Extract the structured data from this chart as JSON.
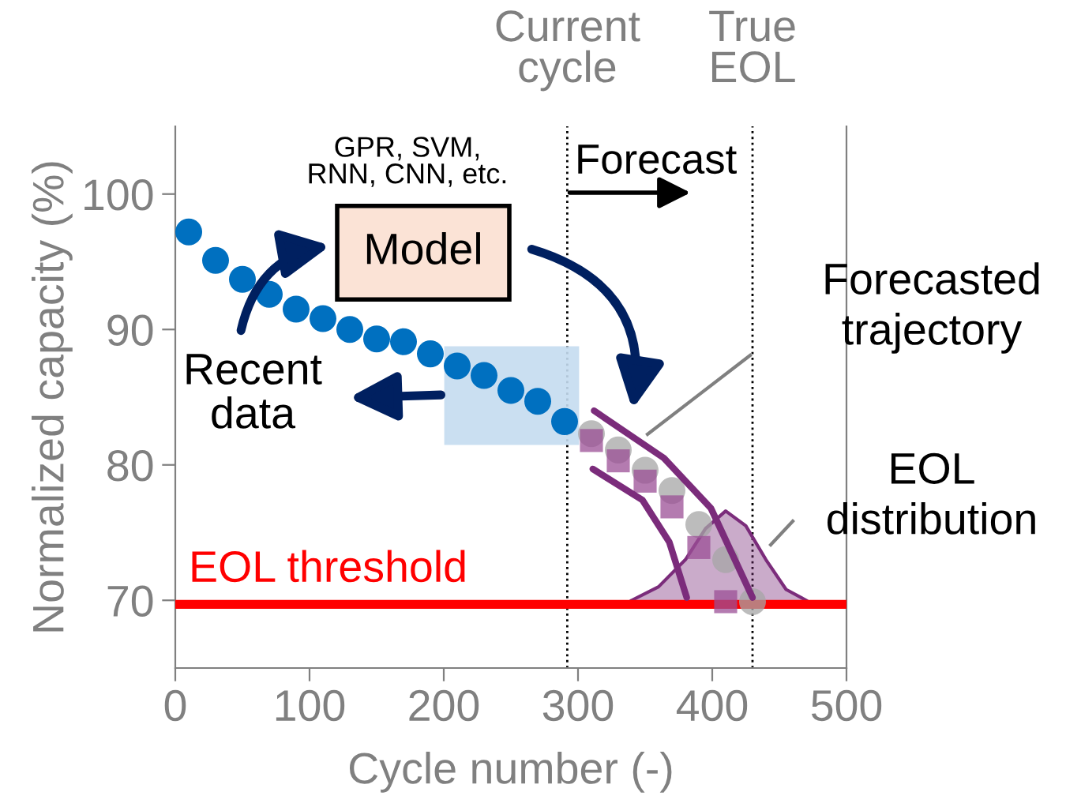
{
  "chart_data": {
    "type": "scatter",
    "xlabel": "Cycle number (-)",
    "ylabel": "Normalized capacity (%)",
    "xlim": [
      0,
      500
    ],
    "xticks": [
      0,
      100,
      200,
      300,
      400,
      500
    ],
    "ylim": [
      65,
      105
    ],
    "yticks": [
      70,
      80,
      90,
      100
    ],
    "grid": false,
    "series": [
      {
        "marker": "circle",
        "color": "#0070c0",
        "x": [
          10,
          30,
          50,
          70,
          90,
          110,
          130,
          150,
          170,
          190,
          210,
          230,
          250,
          270,
          290
        ],
        "values": [
          97.2,
          95.1,
          93.7,
          92.6,
          91.5,
          90.8,
          90.0,
          89.3,
          89.1,
          88.2,
          87.3,
          86.6,
          85.5,
          84.7,
          83.2
        ]
      },
      {
        "type": "area",
        "color": "#7b2c7b",
        "x": [
          340,
          360,
          380,
          395,
          410,
          425,
          440,
          455,
          470
        ],
        "values": [
          70.0,
          71.0,
          73.0,
          75.3,
          76.6,
          75.5,
          73.0,
          70.8,
          70.0
        ]
      },
      {
        "marker": "circle",
        "color": "#a6a6a6",
        "x": [
          310,
          330,
          350,
          370,
          390,
          410,
          430
        ],
        "values": [
          82.3,
          81.1,
          79.6,
          78.1,
          75.6,
          73.0,
          69.9
        ]
      },
      {
        "marker": "square",
        "color": "#9b4f96",
        "x": [
          310,
          330,
          350,
          370,
          390,
          410
        ],
        "values": [
          81.8,
          80.3,
          78.8,
          76.9,
          73.9,
          69.9
        ]
      },
      {
        "type": "line",
        "marker": "none",
        "color": "#7b2c7b",
        "x": [
          312,
          364,
          399,
          430
        ],
        "values": [
          84.0,
          80.5,
          76.8,
          70.2
        ]
      },
      {
        "type": "line",
        "marker": "none",
        "color": "#7b2c7b",
        "x": [
          311,
          348,
          368,
          381
        ],
        "values": [
          79.7,
          77.4,
          74.3,
          70.2
        ]
      }
    ],
    "ref_lines": [
      {
        "axis": "y",
        "value": 69.7,
        "label": "EOL threshold",
        "color": "#ff0000",
        "line_style": "solid"
      },
      {
        "axis": "x",
        "value": 292,
        "label": "Current cycle",
        "color": "#000000",
        "line_style": "dotted"
      },
      {
        "axis": "x",
        "value": 430,
        "label": "True EOL",
        "color": "#000000",
        "line_style": "dotted"
      }
    ],
    "annotations": [
      "Forecast",
      "GPR, SVM,\nRNN, CNN, etc.",
      "Model",
      "Recent data",
      "Forecasted trajectory",
      "EOL distribution"
    ]
  }
}
